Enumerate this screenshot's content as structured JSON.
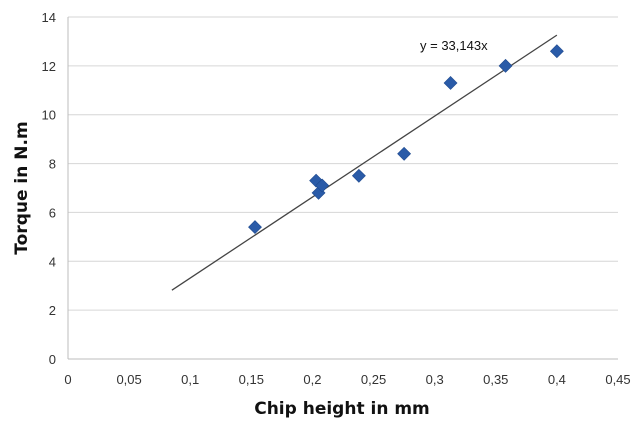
{
  "chart_data": {
    "type": "scatter",
    "title": "",
    "xlabel": "Chip height in mm",
    "ylabel": "Torque in N.m",
    "xlim": [
      0,
      0.45
    ],
    "ylim": [
      0,
      14
    ],
    "x_ticks": [
      "0",
      "0,05",
      "0,1",
      "0,15",
      "0,2",
      "0,25",
      "0,3",
      "0,35",
      "0,4",
      "0,45"
    ],
    "y_ticks": [
      "0",
      "2",
      "4",
      "6",
      "8",
      "10",
      "12",
      "14"
    ],
    "grid": "horizontal",
    "series": [
      {
        "marker": "diamond",
        "color": "#2a5ba8",
        "points": [
          {
            "x": 0.153,
            "y": 5.4
          },
          {
            "x": 0.203,
            "y": 7.3
          },
          {
            "x": 0.205,
            "y": 6.8
          },
          {
            "x": 0.208,
            "y": 7.1
          },
          {
            "x": 0.238,
            "y": 7.5
          },
          {
            "x": 0.275,
            "y": 8.4
          },
          {
            "x": 0.313,
            "y": 11.3
          },
          {
            "x": 0.358,
            "y": 12.0
          },
          {
            "x": 0.4,
            "y": 12.6
          }
        ]
      }
    ],
    "trendline": {
      "label": "y = 33,143x",
      "slope": 33.143,
      "x_start": 0.085,
      "x_end": 0.4,
      "color": "#444444"
    }
  }
}
